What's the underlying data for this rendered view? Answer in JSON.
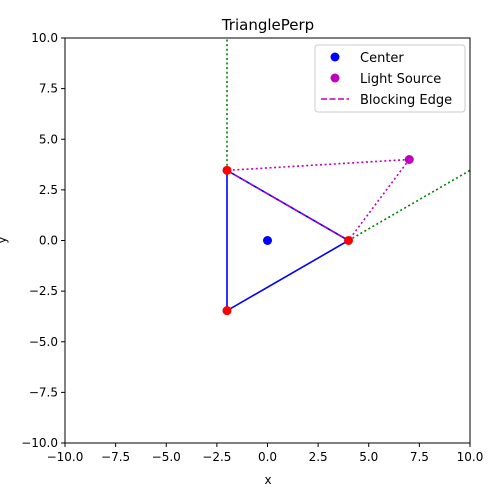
{
  "chart_data": {
    "type": "scatter",
    "title": "TrianglePerp",
    "xlabel": "x",
    "ylabel": "y",
    "xlim": [
      -10,
      10
    ],
    "ylim": [
      -10,
      10
    ],
    "xticks": [
      -10,
      -7.5,
      -5,
      -2.5,
      0,
      2.5,
      5,
      7.5,
      10
    ],
    "yticks": [
      -10,
      -7.5,
      -5,
      -2.5,
      0,
      2.5,
      5,
      7.5,
      10
    ],
    "xtick_labels": [
      "−10.0",
      "−7.5",
      "−5.0",
      "−2.5",
      "0.0",
      "2.5",
      "5.0",
      "7.5",
      "10.0"
    ],
    "ytick_labels": [
      "−10.0",
      "−7.5",
      "−5.0",
      "−2.5",
      "0.0",
      "2.5",
      "5.0",
      "7.5",
      "10.0"
    ],
    "grid": false,
    "legend_position": "top-right",
    "triangle": {
      "color": "#0000ff",
      "vertices": [
        [
          4,
          0
        ],
        [
          -2,
          3.4641
        ],
        [
          -2,
          -3.4641
        ]
      ]
    },
    "vertices_points": {
      "color": "#ff0000",
      "points": [
        [
          4,
          0
        ],
        [
          -2,
          3.4641
        ],
        [
          -2,
          -3.4641
        ]
      ]
    },
    "center": {
      "name": "Center",
      "color": "#0000ff",
      "point": [
        0,
        0
      ]
    },
    "light_source": {
      "name": "Light Source",
      "color": "#bf00bf",
      "point": [
        7,
        4
      ]
    },
    "blocking_edge": {
      "name": "Blocking Edge",
      "color": "#bf00bf",
      "from": [
        -2,
        3.4641
      ],
      "to": [
        4,
        0
      ]
    },
    "light_rays": {
      "color": "#bf00bf",
      "segments": [
        [
          [
            7,
            4
          ],
          [
            -2,
            3.4641
          ]
        ],
        [
          [
            7,
            4
          ],
          [
            4,
            0
          ]
        ]
      ]
    },
    "perpendicular_lines": {
      "color": "#008000",
      "segments": [
        [
          [
            -2,
            3.4641
          ],
          [
            -2,
            10
          ]
        ],
        [
          [
            4,
            0
          ],
          [
            10,
            3.4641
          ]
        ]
      ]
    },
    "legend": [
      {
        "label": "Center",
        "kind": "marker",
        "color": "#0000ff"
      },
      {
        "label": "Light Source",
        "kind": "marker",
        "color": "#bf00bf"
      },
      {
        "label": "Blocking Edge",
        "kind": "dashed",
        "color": "#bf00bf"
      }
    ]
  }
}
